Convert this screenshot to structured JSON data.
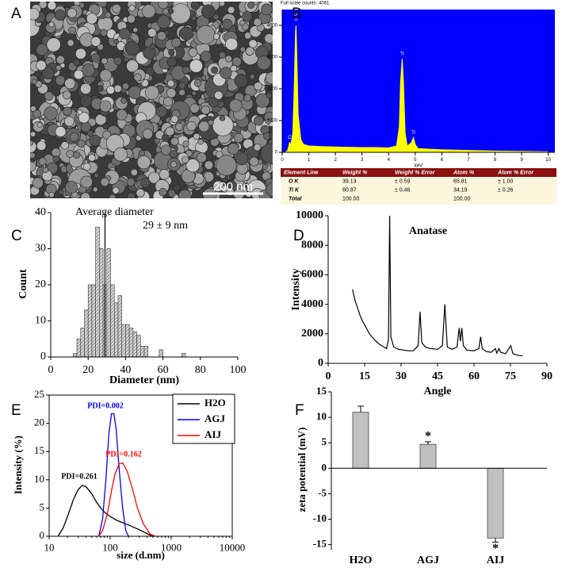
{
  "image_panel": {
    "label": "A",
    "scale_bar": "200 nm"
  },
  "chart_data": [
    {
      "label": "B",
      "type": "area",
      "subtitle": "Full scale counts: 4061",
      "x_label": "keV",
      "x": [
        0.1,
        0.2,
        0.25,
        0.28,
        0.32,
        0.4,
        0.45,
        0.5,
        0.52,
        0.55,
        0.6,
        0.7,
        0.8,
        1.0,
        1.5,
        2,
        2.5,
        3,
        3.5,
        4,
        4.3,
        4.4,
        4.45,
        4.51,
        4.56,
        4.62,
        4.7,
        4.85,
        4.93,
        5.0,
        5.1,
        5.5,
        6,
        7,
        8,
        9,
        10
      ],
      "values": [
        0,
        50,
        200,
        320,
        200,
        600,
        2000,
        3800,
        4000,
        3000,
        1200,
        400,
        250,
        200,
        180,
        170,
        160,
        150,
        150,
        140,
        200,
        800,
        2200,
        2950,
        2200,
        600,
        200,
        300,
        470,
        250,
        120,
        100,
        80,
        60,
        40,
        30,
        20
      ],
      "color": "#ffff00",
      "background": "#0000ff",
      "xlim": [
        0,
        10.25
      ],
      "ylim": [
        0,
        4500
      ],
      "xticks": [
        0,
        1,
        2,
        3,
        4,
        5,
        6,
        7,
        8,
        9,
        10
      ],
      "yticks": [
        0,
        1000,
        2000,
        3000,
        4000
      ],
      "annotations": [
        "O",
        "Ti",
        "Ti",
        "Ti",
        "C"
      ],
      "table": {
        "header": [
          "Element Line",
          "Weight %",
          "Weight % Error",
          "Atom %",
          "Atom % Error"
        ],
        "rows": [
          [
            "O K",
            "39.13",
            "± 0.59",
            "65.81",
            "± 1.00"
          ],
          [
            "Ti K",
            "60.87",
            "± 0.46",
            "34.19",
            "± 0.26"
          ],
          [
            "Total",
            "100.00",
            null,
            "100.00",
            null
          ]
        ]
      }
    },
    {
      "label": "C",
      "type": "histogram",
      "x_label": "Diameter (nm)",
      "y_label": "Count",
      "bins": [
        12,
        14,
        16,
        18,
        20,
        22,
        24,
        26,
        28,
        30,
        32,
        34,
        36,
        38,
        40,
        42,
        44,
        46,
        48,
        50,
        52,
        54,
        56,
        58,
        60,
        62,
        64,
        66,
        68,
        70,
        72
      ],
      "values": [
        1,
        5,
        8,
        13,
        20,
        20,
        36,
        30,
        20,
        30,
        20,
        15,
        17,
        9,
        9,
        8,
        7,
        6,
        3,
        3,
        0,
        0,
        0,
        2,
        0,
        0,
        0,
        0,
        0,
        1
      ],
      "mean": 29,
      "annotations": [
        "Average diameter",
        "29 ± 9 nm"
      ],
      "xlim": [
        0,
        100
      ],
      "ylim": [
        0,
        40
      ],
      "xticks": [
        0,
        20,
        40,
        60,
        80,
        100
      ],
      "yticks": [
        0,
        10,
        20,
        30,
        40
      ]
    },
    {
      "label": "D",
      "type": "line",
      "title": "Anatase",
      "x_label": "Angle",
      "y_label": "Intensity",
      "color": "#000000",
      "x": [
        10,
        11,
        12,
        13,
        14,
        15,
        16,
        17,
        18,
        19,
        20,
        21,
        22,
        23,
        24,
        24.8,
        25.3,
        25.8,
        27,
        29,
        31,
        33,
        35,
        37,
        37.8,
        38.5,
        40,
        42,
        45,
        47,
        48,
        49,
        51,
        53,
        53.9,
        54.4,
        55,
        55.6,
        57,
        60,
        62,
        62.7,
        63.4,
        65,
        67,
        68.8,
        69.4,
        70.3,
        71,
        73,
        75.1,
        76,
        78,
        80
      ],
      "values": [
        5000,
        4300,
        3800,
        3300,
        2900,
        2600,
        2300,
        2000,
        1800,
        1600,
        1450,
        1300,
        1200,
        1100,
        1000,
        1600,
        10000,
        1800,
        1100,
        950,
        900,
        850,
        850,
        1200,
        3500,
        1400,
        1100,
        1000,
        950,
        1200,
        4000,
        1100,
        950,
        1100,
        2400,
        1500,
        2400,
        1200,
        900,
        850,
        1000,
        1800,
        1000,
        800,
        750,
        1000,
        700,
        1000,
        750,
        650,
        1200,
        650,
        550,
        500
      ],
      "xlim": [
        0,
        90
      ],
      "ylim": [
        0,
        10000
      ],
      "xticks": [
        0,
        15,
        30,
        45,
        60,
        75,
        90
      ],
      "yticks": [
        0,
        2000,
        4000,
        6000,
        8000,
        10000
      ]
    },
    {
      "label": "E",
      "type": "line",
      "x_label": "size (d.nm)",
      "y_label": "Intensity (%)",
      "log_x": true,
      "series": [
        {
          "name": "H2O",
          "color": "#000000",
          "x": [
            14,
            17,
            20,
            25,
            30,
            35,
            40,
            50,
            60,
            70,
            80,
            100,
            130,
            170,
            220,
            280,
            350,
            450,
            550
          ],
          "values": [
            0,
            1.5,
            3.5,
            6.5,
            8.3,
            9,
            8.8,
            7.5,
            6,
            5,
            4.3,
            3.5,
            2.8,
            2.3,
            1.8,
            1.3,
            0.8,
            0.2,
            0
          ]
        },
        {
          "name": "AGJ",
          "color": "#0000ff",
          "x": [
            65,
            75,
            85,
            95,
            105,
            115,
            125,
            140,
            160,
            180,
            200
          ],
          "values": [
            0,
            3,
            10,
            18,
            21.7,
            21.7,
            19,
            12,
            5,
            1,
            0
          ]
        },
        {
          "name": "AIJ",
          "color": "#ff0000",
          "x": [
            65,
            75,
            90,
            105,
            120,
            140,
            160,
            190,
            230,
            280,
            350,
            450,
            550
          ],
          "values": [
            0,
            1,
            4,
            8,
            11,
            12.8,
            13,
            11.5,
            8.5,
            5,
            2.2,
            0.4,
            0
          ]
        }
      ],
      "annotations": [
        "PDI=0.261",
        "PDI=0.002",
        "PDI=0.162"
      ],
      "xlim": [
        10,
        10000
      ],
      "ylim": [
        0,
        25
      ],
      "xticks": [
        10,
        100,
        1000,
        10000
      ],
      "yticks": [
        0,
        5,
        10,
        15,
        20,
        25
      ]
    },
    {
      "label": "F",
      "type": "bar",
      "y_label": "zeta potential (mV)",
      "color": "#c0c0c0",
      "categories": [
        "H2O",
        "AGJ",
        "AIJ"
      ],
      "values": [
        11,
        4.7,
        -13.7
      ],
      "errors": [
        1.2,
        0.5,
        0.8
      ],
      "annotations": [
        "*",
        "*"
      ],
      "ylim": [
        -16,
        15
      ],
      "yticks": [
        -15,
        -10,
        -5,
        0,
        5,
        10,
        15
      ]
    }
  ]
}
